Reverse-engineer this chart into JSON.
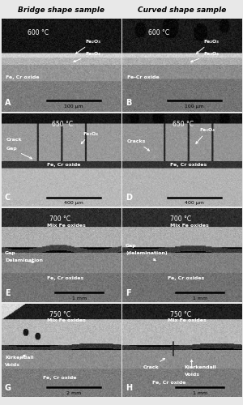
{
  "col_headers": [
    "Bridge shape sample",
    "Curved shape sample"
  ],
  "panels": [
    {
      "label": "A",
      "temp": "600 °C",
      "col": 0,
      "row": 0
    },
    {
      "label": "B",
      "temp": "600 °C",
      "col": 1,
      "row": 0
    },
    {
      "label": "C",
      "temp": "650 °C",
      "col": 0,
      "row": 1
    },
    {
      "label": "D",
      "temp": "650 °C",
      "col": 1,
      "row": 1
    },
    {
      "label": "E",
      "temp": "700 °C",
      "col": 0,
      "row": 2
    },
    {
      "label": "F",
      "temp": "700 °C",
      "col": 1,
      "row": 2
    },
    {
      "label": "G",
      "temp": "750 °C",
      "col": 0,
      "row": 3
    },
    {
      "label": "H",
      "temp": "750 °C",
      "col": 1,
      "row": 3
    }
  ],
  "fig_width": 3.0,
  "fig_height": 5.0,
  "header_fontsize": 6.5,
  "annot_fontsize": 4.5,
  "scalebar_fontsize": 4.5,
  "temp_fontsize": 5.5,
  "label_fontsize": 7
}
